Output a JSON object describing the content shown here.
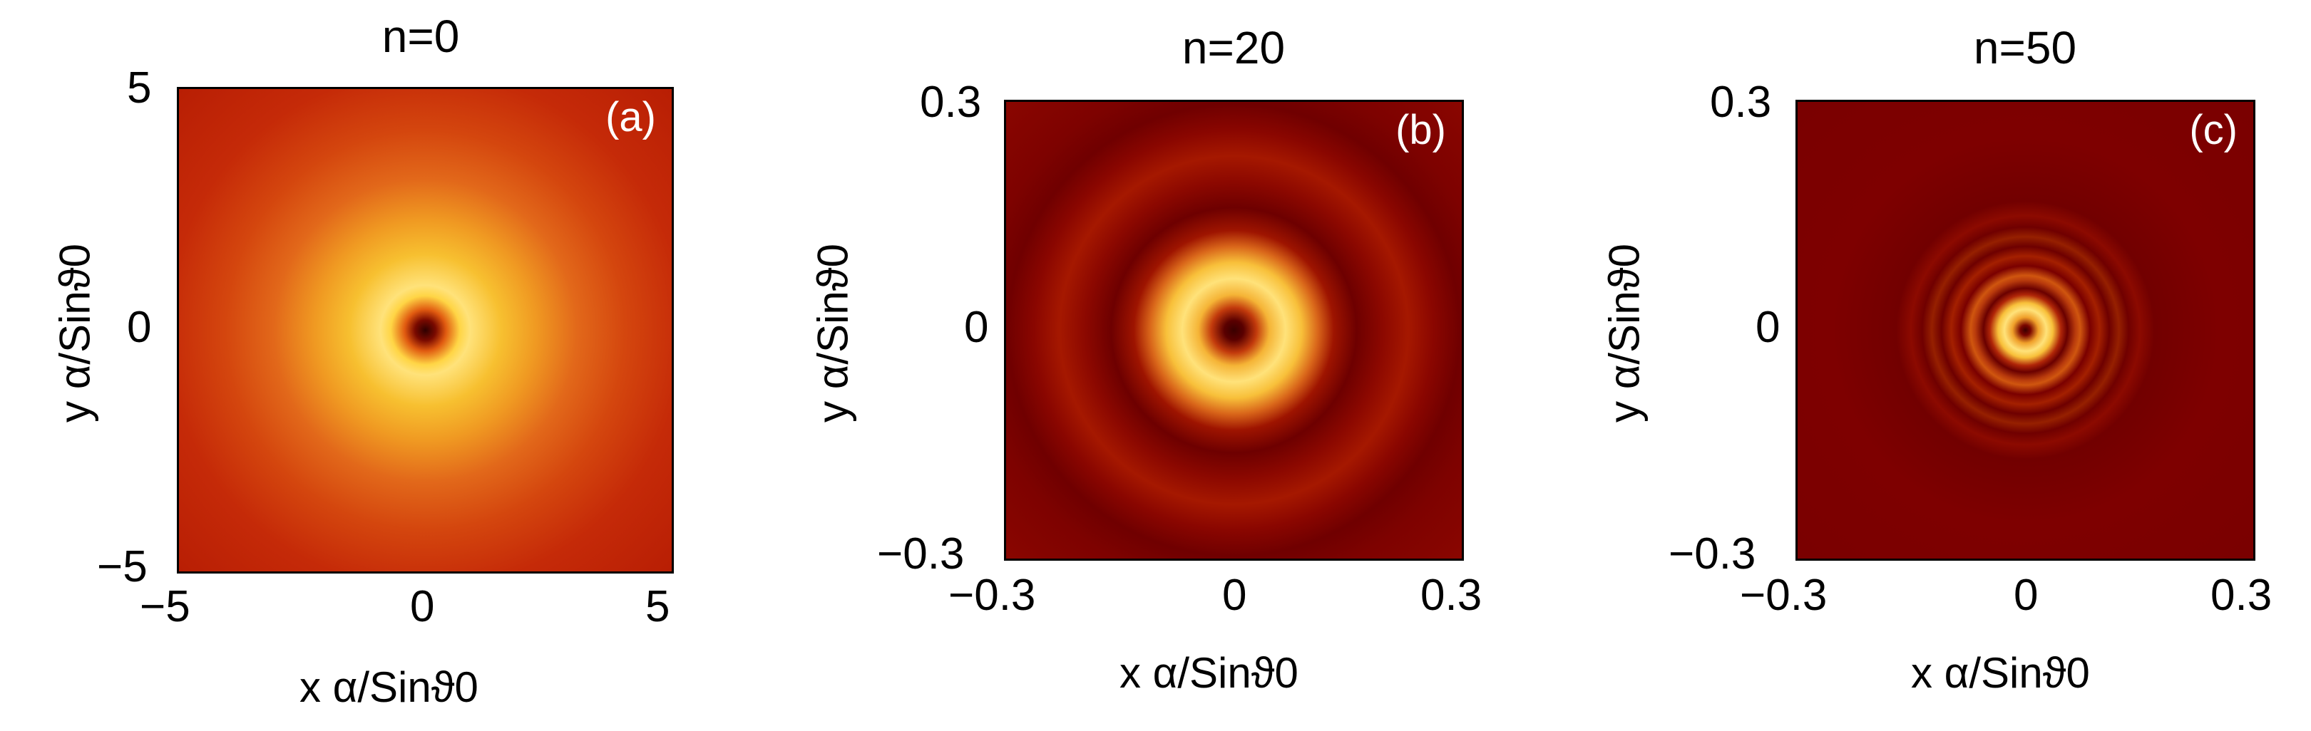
{
  "chart_data": [
    {
      "type": "heatmap",
      "title": "n=0",
      "panel_label": "(a)",
      "xlabel": "x α/Sinϑ0",
      "ylabel": "y α/Sinϑ0",
      "xlim": [
        -5,
        5
      ],
      "ylim": [
        -5,
        5
      ],
      "xticks": [
        "−5",
        "0",
        "5"
      ],
      "yticks": [
        "5",
        "0",
        "−5"
      ],
      "pattern": {
        "description_rings": 0,
        "center_dark": true,
        "colormap": [
          "#7a0000",
          "#b01800",
          "#d84010",
          "#f08a20",
          "#f8c030",
          "#ffe27a"
        ],
        "edge_color": "#c52a08",
        "bright_ring_radius_fraction": 0.18,
        "dark_core_radius_fraction": 0.04
      }
    },
    {
      "type": "heatmap",
      "title": "n=20",
      "panel_label": "(b)",
      "xlabel": "x α/Sinϑ0",
      "ylabel": "y α/Sinϑ0",
      "xlim": [
        -0.3,
        0.3
      ],
      "ylim": [
        -0.3,
        0.3
      ],
      "xticks": [
        "−0.3",
        "0",
        "0.3"
      ],
      "yticks": [
        "0.3",
        "0",
        "−0.3"
      ],
      "pattern": {
        "center_dark": true,
        "colormap": [
          "#6e0000",
          "#8c0600",
          "#b82a08",
          "#e8801c",
          "#f8c03a",
          "#ffe27a"
        ],
        "edge_color": "#9a1200",
        "bright_ring_radius_fraction": 0.24,
        "dark_core_radius_fraction": 0.05
      }
    },
    {
      "type": "heatmap",
      "title": "n=50",
      "panel_label": "(c)",
      "xlabel": "x α/Sinϑ0",
      "ylabel": "y α/Sinϑ0",
      "xlim": [
        -0.3,
        0.3
      ],
      "ylim": [
        -0.3,
        0.3
      ],
      "xticks": [
        "−0.3",
        "0",
        "0.3"
      ],
      "yticks": [
        "0.3",
        "0",
        "−0.3"
      ],
      "pattern": {
        "center_dark": true,
        "colormap": [
          "#6a0000",
          "#840200",
          "#b02608",
          "#e8801c",
          "#f8c03a",
          "#ffe27a"
        ],
        "edge_color": "#7e0000",
        "bright_ring_radius_fraction": 0.1,
        "dark_core_radius_fraction": 0.025
      }
    }
  ]
}
